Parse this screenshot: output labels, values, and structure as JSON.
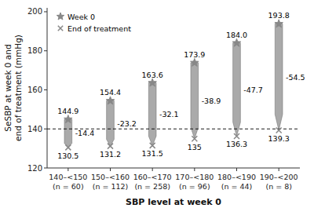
{
  "chart_data": {
    "type": "range_bar",
    "xlabel": "SBP level at week 0",
    "ylabel": "SeSBP at week 0 and\nend of treatment (mmHg)",
    "categories": [
      "140–<150\n(n = 60)",
      "150–<160\n(n = 112)",
      "160–<170\n(n = 258)",
      "170–<180\n(n = 96)",
      "180–<190\n(n = 44)",
      "190–<200\n(n = 8)"
    ],
    "series": [
      {
        "name": "Week 0",
        "color": "#888888",
        "marker": "star",
        "values": [
          144.9,
          154.4,
          163.6,
          173.9,
          184.0,
          193.8
        ],
        "value_labels": [
          "144.9",
          "154.4",
          "163.6",
          "173.9",
          "184.0",
          "193.8"
        ]
      },
      {
        "name": "End of treatment",
        "color": "#888888",
        "marker": "x",
        "values": [
          130.5,
          131.2,
          131.5,
          135.0,
          136.3,
          139.3
        ]
      }
    ],
    "changes": [
      -14.4,
      -23.2,
      -32.1,
      -38.9,
      -47.7,
      -54.5
    ],
    "color": "#aaaaaa",
    "reference_line": 140,
    "ylim": [
      120,
      202
    ],
    "yticks": [
      120,
      140,
      160,
      180,
      200
    ],
    "data_labels": true,
    "legend": "upper left"
  }
}
